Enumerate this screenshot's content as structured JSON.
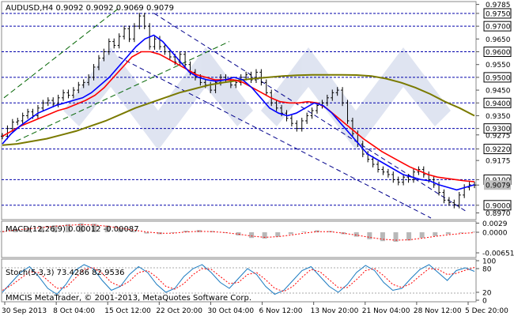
{
  "chart_data": [
    {
      "type": "candlestick",
      "header": "AUDUSD,H4  0.9092 0.9092 0.9069 0.9079",
      "ylim": [
        0.895,
        0.979
      ],
      "price_ticks": [
        "0.9785",
        "0.9750",
        "0.9700",
        "0.9650",
        "0.9600",
        "0.9550",
        "0.9500",
        "0.9450",
        "0.9400",
        "0.9350",
        "0.9300",
        "0.9275",
        "0.9220",
        "0.9175",
        "0.9100",
        "0.9079",
        "0.9000",
        "0.8970"
      ],
      "highlighted_levels": [
        0.975,
        0.97,
        0.96,
        0.95,
        0.94,
        0.93,
        0.922,
        0.91,
        0.9
      ],
      "current_price": "0.9079",
      "x_labels": [
        "30 Sep 2013",
        "8 Oct 04:00",
        "15 Oct 12:00",
        "22 Oct 20:00",
        "30 Oct 04:00",
        "6 Nov 12:00",
        "13 Nov 20:00",
        "21 Nov 04:00",
        "28 Nov 12:00",
        "5 Dec 20:00"
      ],
      "close": [
        0.927,
        0.93,
        0.9325,
        0.933,
        0.935,
        0.9365,
        0.935,
        0.938,
        0.94,
        0.941,
        0.9395,
        0.942,
        0.944,
        0.943,
        0.945,
        0.947,
        0.948,
        0.95,
        0.954,
        0.9575,
        0.96,
        0.964,
        0.9625,
        0.966,
        0.969,
        0.965,
        0.97,
        0.974,
        0.97,
        0.962,
        0.965,
        0.962,
        0.96,
        0.958,
        0.956,
        0.959,
        0.955,
        0.952,
        0.95,
        0.948,
        0.947,
        0.945,
        0.948,
        0.95,
        0.949,
        0.947,
        0.948,
        0.95,
        0.951,
        0.949,
        0.952,
        0.948,
        0.944,
        0.94,
        0.938,
        0.936,
        0.934,
        0.932,
        0.93,
        0.933,
        0.935,
        0.937,
        0.939,
        0.94,
        0.942,
        0.944,
        0.945,
        0.94,
        0.933,
        0.928,
        0.924,
        0.92,
        0.918,
        0.916,
        0.914,
        0.913,
        0.912,
        0.91,
        0.909,
        0.911,
        0.91,
        0.913,
        0.914,
        0.912,
        0.91,
        0.908,
        0.905,
        0.902,
        0.901,
        0.9,
        0.904,
        0.907,
        0.908,
        0.9079
      ],
      "ema_fast": [
        0.924,
        0.928,
        0.931,
        0.9335,
        0.936,
        0.9375,
        0.939,
        0.94,
        0.941,
        0.942,
        0.944,
        0.947,
        0.95,
        0.954,
        0.958,
        0.962,
        0.965,
        0.9665,
        0.964,
        0.96,
        0.956,
        0.952,
        0.95,
        0.949,
        0.9485,
        0.949,
        0.95,
        0.949,
        0.946,
        0.942,
        0.938,
        0.936,
        0.935,
        0.936,
        0.938,
        0.94,
        0.939,
        0.936,
        0.932,
        0.928,
        0.924,
        0.92,
        0.918,
        0.916,
        0.914,
        0.912,
        0.911,
        0.91,
        0.9095,
        0.908,
        0.907,
        0.906,
        0.907,
        0.908
      ],
      "ema_slow": [
        0.927,
        0.929,
        0.931,
        0.9325,
        0.934,
        0.9355,
        0.937,
        0.938,
        0.9395,
        0.941,
        0.943,
        0.946,
        0.95,
        0.954,
        0.958,
        0.96,
        0.96,
        0.959,
        0.957,
        0.955,
        0.953,
        0.951,
        0.95,
        0.949,
        0.949,
        0.949,
        0.948,
        0.946,
        0.944,
        0.942,
        0.9405,
        0.94,
        0.94,
        0.9405,
        0.94,
        0.938,
        0.935,
        0.932,
        0.929,
        0.926,
        0.9235,
        0.921,
        0.919,
        0.917,
        0.915,
        0.9135,
        0.912,
        0.911,
        0.9105,
        0.91,
        0.9095,
        0.9092
      ],
      "ma_long": [
        0.9235,
        0.924,
        0.925,
        0.926,
        0.9275,
        0.929,
        0.931,
        0.933,
        0.9355,
        0.938,
        0.94,
        0.942,
        0.944,
        0.9455,
        0.947,
        0.948,
        0.9488,
        0.9495,
        0.95,
        0.9505,
        0.9508,
        0.951,
        0.951,
        0.951,
        0.9509,
        0.9505,
        0.9495,
        0.948,
        0.946,
        0.9435,
        0.9405,
        0.938,
        0.935
      ],
      "colors": {
        "price": "#000000",
        "ema_fast": "#0000ff",
        "ema_slow": "#ff0000",
        "ma_long": "#7a7a00",
        "level": "#0000aa",
        "channel": "#00008b",
        "channel_up": "#006400"
      }
    },
    {
      "type": "bar",
      "header": "MACD(12,26,9) 0.00012 -0.00087",
      "ylim": [
        -0.0075,
        0.003
      ],
      "ticks": [
        "0.0029",
        "0.0000",
        "-0.00651"
      ],
      "histogram": [
        0.0004,
        0.001,
        0.0014,
        0.0018,
        0.0022,
        0.0026,
        0.0029,
        0.0027,
        0.0021,
        0.0012,
        0.0004,
        -0.0004,
        -0.0006,
        -0.0002,
        0.0005,
        0.0007,
        0.0004,
        -0.0002,
        -0.001,
        -0.0018,
        -0.002,
        -0.0014,
        -0.0006,
        0.0002,
        0.0006,
        0.0004,
        -0.0006,
        -0.0014,
        -0.0022,
        -0.0028,
        -0.003,
        -0.0026,
        -0.0018,
        -0.0012,
        -0.0006,
        -0.0002,
        0.0002
      ],
      "signal": [
        0.0002,
        0.0007,
        0.0011,
        0.0015,
        0.0019,
        0.0022,
        0.0024,
        0.0023,
        0.0019,
        0.0013,
        0.0007,
        0.0001,
        -0.0003,
        -0.0003,
        0.0001,
        0.0003,
        0.0002,
        -0.0001,
        -0.0006,
        -0.0012,
        -0.0016,
        -0.0014,
        -0.0009,
        -0.0003,
        0.0002,
        0.0002,
        -0.0003,
        -0.0009,
        -0.0016,
        -0.0022,
        -0.0025,
        -0.0024,
        -0.0019,
        -0.0013,
        -0.0008,
        -0.0004,
        -0.0001
      ]
    },
    {
      "type": "line",
      "header": "Stoch(5,3,3) 73.4286 82.9536",
      "ylim": [
        0,
        100
      ],
      "ticks": [
        "100",
        "80",
        "20",
        "0"
      ],
      "k": [
        20,
        45,
        70,
        85,
        60,
        30,
        15,
        40,
        75,
        90,
        80,
        50,
        25,
        35,
        65,
        85,
        70,
        40,
        20,
        30,
        60,
        80,
        90,
        70,
        45,
        30,
        55,
        80,
        65,
        35,
        15,
        25,
        50,
        75,
        85,
        60,
        35,
        20,
        40,
        70,
        88,
        75,
        45,
        25,
        30,
        55,
        78,
        90,
        70,
        50,
        75,
        82,
        73
      ],
      "d": [
        25,
        38,
        55,
        72,
        70,
        50,
        30,
        32,
        55,
        78,
        83,
        68,
        45,
        35,
        48,
        70,
        75,
        58,
        35,
        28,
        42,
        65,
        80,
        78,
        60,
        42,
        45,
        65,
        70,
        52,
        30,
        22,
        35,
        58,
        78,
        72,
        52,
        32,
        32,
        52,
        75,
        80,
        62,
        40,
        32,
        42,
        62,
        80,
        78,
        65,
        68,
        76,
        83
      ]
    }
  ],
  "footer": "MMCIS MetaTrader, © 2001-2013, MetaQuotes Software Corp.",
  "watermark": "MMCIS"
}
